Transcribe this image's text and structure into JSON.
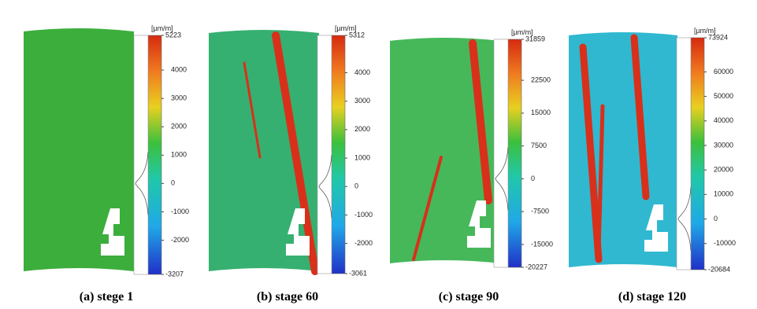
{
  "panels": [
    {
      "caption": "(a) stege 1",
      "unit": "[µm/m]",
      "max": 5223,
      "min": -3207,
      "ticks": [
        4000,
        3000,
        2000,
        1000,
        0,
        -1000,
        -2000
      ]
    },
    {
      "caption": "(b) stage 60",
      "unit": "[µm/m]",
      "max": 5312,
      "min": -3061,
      "ticks": [
        4000,
        3000,
        2000,
        1000,
        0,
        -1000,
        -2000
      ]
    },
    {
      "caption": "(c) stage 90",
      "unit": "[µm/m]",
      "max": 31859,
      "min": -20227,
      "ticks": [
        22500,
        15000,
        7500,
        0,
        -7500,
        -15000
      ]
    },
    {
      "caption": "(d) stage 120",
      "unit": "[µm/m]",
      "max": 73924,
      "min": -20684,
      "ticks": [
        60000,
        50000,
        40000,
        30000,
        20000,
        10000,
        0,
        -10000
      ]
    }
  ]
}
